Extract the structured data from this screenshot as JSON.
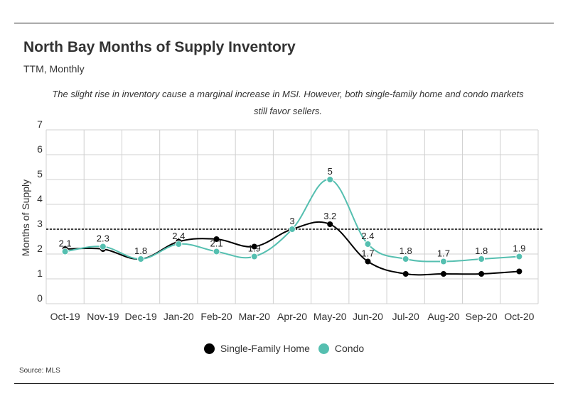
{
  "title": "North Bay Months of Supply Inventory",
  "subtitle": "TTM, Monthly",
  "note": "The slight rise in inventory cause a marginal increase in MSI. However, both single-family home and condo markets still favor sellers.",
  "source": "Source:  MLS",
  "colors": {
    "sfh": "#000000",
    "condo": "#55bfb0",
    "grid": "#d0d0d0",
    "reference": "#000000"
  },
  "chart_data": {
    "type": "line",
    "title": "North Bay Months of Supply Inventory",
    "subtitle": "TTM, Monthly",
    "ylabel": "Months of Supply",
    "xlabel": "",
    "ylim": [
      0,
      7
    ],
    "yticks": [
      "0",
      "1",
      "2",
      "3",
      "4",
      "5",
      "6",
      "7"
    ],
    "categories": [
      "Oct-19",
      "Nov-19",
      "Dec-19",
      "Jan-20",
      "Feb-20",
      "Mar-20",
      "Apr-20",
      "May-20",
      "Jun-20",
      "Jul-20",
      "Aug-20",
      "Sep-20",
      "Oct-20"
    ],
    "grid": true,
    "legend_position": "bottom-center",
    "reference_line": 3,
    "series": [
      {
        "name": "Single-Family Home",
        "color": "#000000",
        "values": [
          2.2,
          2.2,
          1.8,
          2.5,
          2.6,
          2.3,
          3.0,
          3.2,
          1.7,
          1.2,
          1.2,
          1.2,
          1.3
        ],
        "labels": [
          "",
          "",
          "",
          "",
          "",
          "",
          "",
          "3.2",
          "1.7",
          "",
          "",
          "",
          ""
        ]
      },
      {
        "name": "Condo",
        "color": "#55bfb0",
        "values": [
          2.1,
          2.3,
          1.8,
          2.4,
          2.1,
          1.9,
          3.0,
          5.0,
          2.4,
          1.8,
          1.7,
          1.8,
          1.9
        ],
        "labels": [
          "2.1",
          "2.3",
          "1.8",
          "2.4",
          "2.1",
          "1.9",
          "3",
          "5",
          "2.4",
          "1.8",
          "1.7",
          "1.8",
          "1.9"
        ]
      }
    ]
  }
}
